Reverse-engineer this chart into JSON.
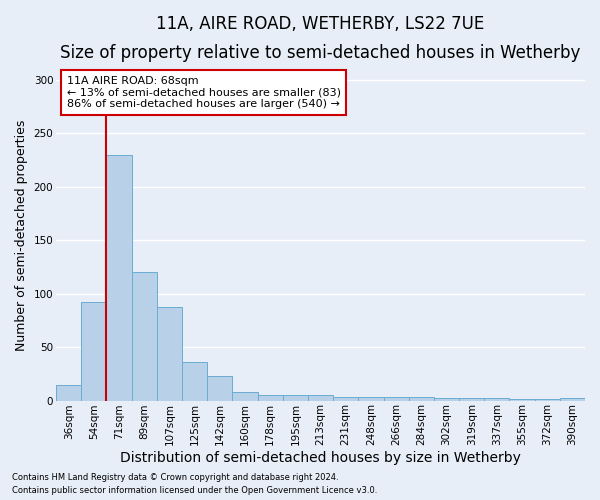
{
  "title_line1": "11A, AIRE ROAD, WETHERBY, LS22 7UE",
  "title_line2": "Size of property relative to semi-detached houses in Wetherby",
  "xlabel": "Distribution of semi-detached houses by size in Wetherby",
  "ylabel": "Number of semi-detached properties",
  "categories": [
    "36sqm",
    "54sqm",
    "71sqm",
    "89sqm",
    "107sqm",
    "125sqm",
    "142sqm",
    "160sqm",
    "178sqm",
    "195sqm",
    "213sqm",
    "231sqm",
    "248sqm",
    "266sqm",
    "284sqm",
    "302sqm",
    "319sqm",
    "337sqm",
    "355sqm",
    "372sqm",
    "390sqm"
  ],
  "values": [
    15,
    92,
    230,
    120,
    88,
    36,
    23,
    8,
    5,
    5,
    5,
    3,
    3,
    3,
    3,
    2,
    2,
    2,
    1,
    1,
    2
  ],
  "bar_color": "#b8d0e8",
  "bar_edge_color": "#6aacd4",
  "annotation_title": "11A AIRE ROAD: 68sqm",
  "annotation_line2": "← 13% of semi-detached houses are smaller (83)",
  "annotation_line3": "86% of semi-detached houses are larger (540) →",
  "annotation_box_color": "#ffffff",
  "annotation_box_edge": "#cc0000",
  "vline_color": "#cc0000",
  "vline_x_index": 1.5,
  "ylim": [
    0,
    310
  ],
  "yticks": [
    0,
    50,
    100,
    150,
    200,
    250,
    300
  ],
  "footer1": "Contains HM Land Registry data © Crown copyright and database right 2024.",
  "footer2": "Contains public sector information licensed under the Open Government Licence v3.0.",
  "background_color": "#e8eef8",
  "plot_background": "#e8eef8",
  "grid_color": "#ffffff",
  "title_fontsize": 12,
  "subtitle_fontsize": 10,
  "tick_fontsize": 7.5,
  "ylabel_fontsize": 9,
  "xlabel_fontsize": 10,
  "footer_fontsize": 6,
  "annotation_fontsize": 8
}
